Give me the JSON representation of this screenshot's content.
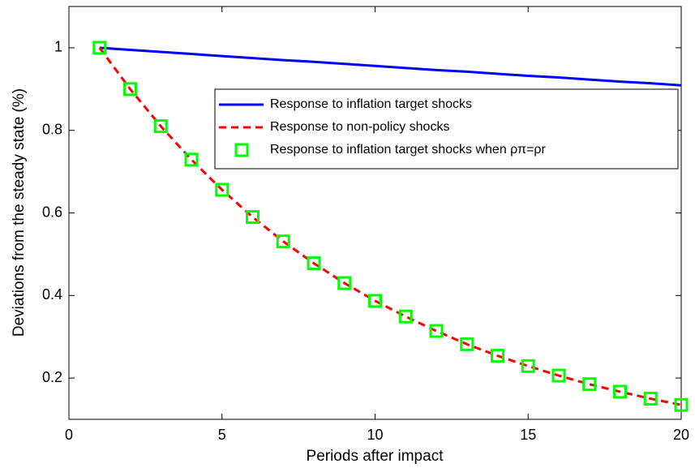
{
  "chart_data": {
    "type": "line",
    "x_label": "Periods after impact",
    "y_label": "Deviations from the steady state (%)",
    "x": [
      1,
      2,
      3,
      4,
      5,
      6,
      7,
      8,
      9,
      10,
      11,
      12,
      13,
      14,
      15,
      16,
      17,
      18,
      19,
      20
    ],
    "series": [
      {
        "name": "Response to inflation target shocks",
        "color": "#0000ff",
        "line_style": "solid",
        "marker": "none",
        "values": [
          1,
          0.995,
          0.99,
          0.985,
          0.98,
          0.975,
          0.97,
          0.966,
          0.961,
          0.956,
          0.951,
          0.946,
          0.942,
          0.937,
          0.932,
          0.928,
          0.923,
          0.918,
          0.914,
          0.909
        ]
      },
      {
        "name": "Response to non-policy shocks",
        "color": "#ff0000",
        "line_style": "dashed",
        "marker": "none",
        "values": [
          1,
          0.9,
          0.81,
          0.729,
          0.656,
          0.59,
          0.531,
          0.478,
          0.43,
          0.387,
          0.349,
          0.314,
          0.282,
          0.254,
          0.229,
          0.206,
          0.185,
          0.167,
          0.15,
          0.135
        ]
      },
      {
        "name": "Response to inflation target shocks when ρπ=ρr",
        "color": "#00ff00",
        "line_style": "none",
        "marker": "square",
        "values": [
          1,
          0.9,
          0.81,
          0.729,
          0.656,
          0.59,
          0.531,
          0.478,
          0.43,
          0.387,
          0.349,
          0.314,
          0.282,
          0.254,
          0.229,
          0.206,
          0.185,
          0.167,
          0.15,
          0.135
        ]
      }
    ],
    "xlim": [
      0,
      20
    ],
    "xticks": [
      0,
      5,
      10,
      15,
      20
    ],
    "ylim": [
      0.1,
      1.1
    ],
    "yticks": [
      0.2,
      0.4,
      0.6,
      0.8,
      1
    ],
    "grid": false,
    "legend": "upper right"
  }
}
